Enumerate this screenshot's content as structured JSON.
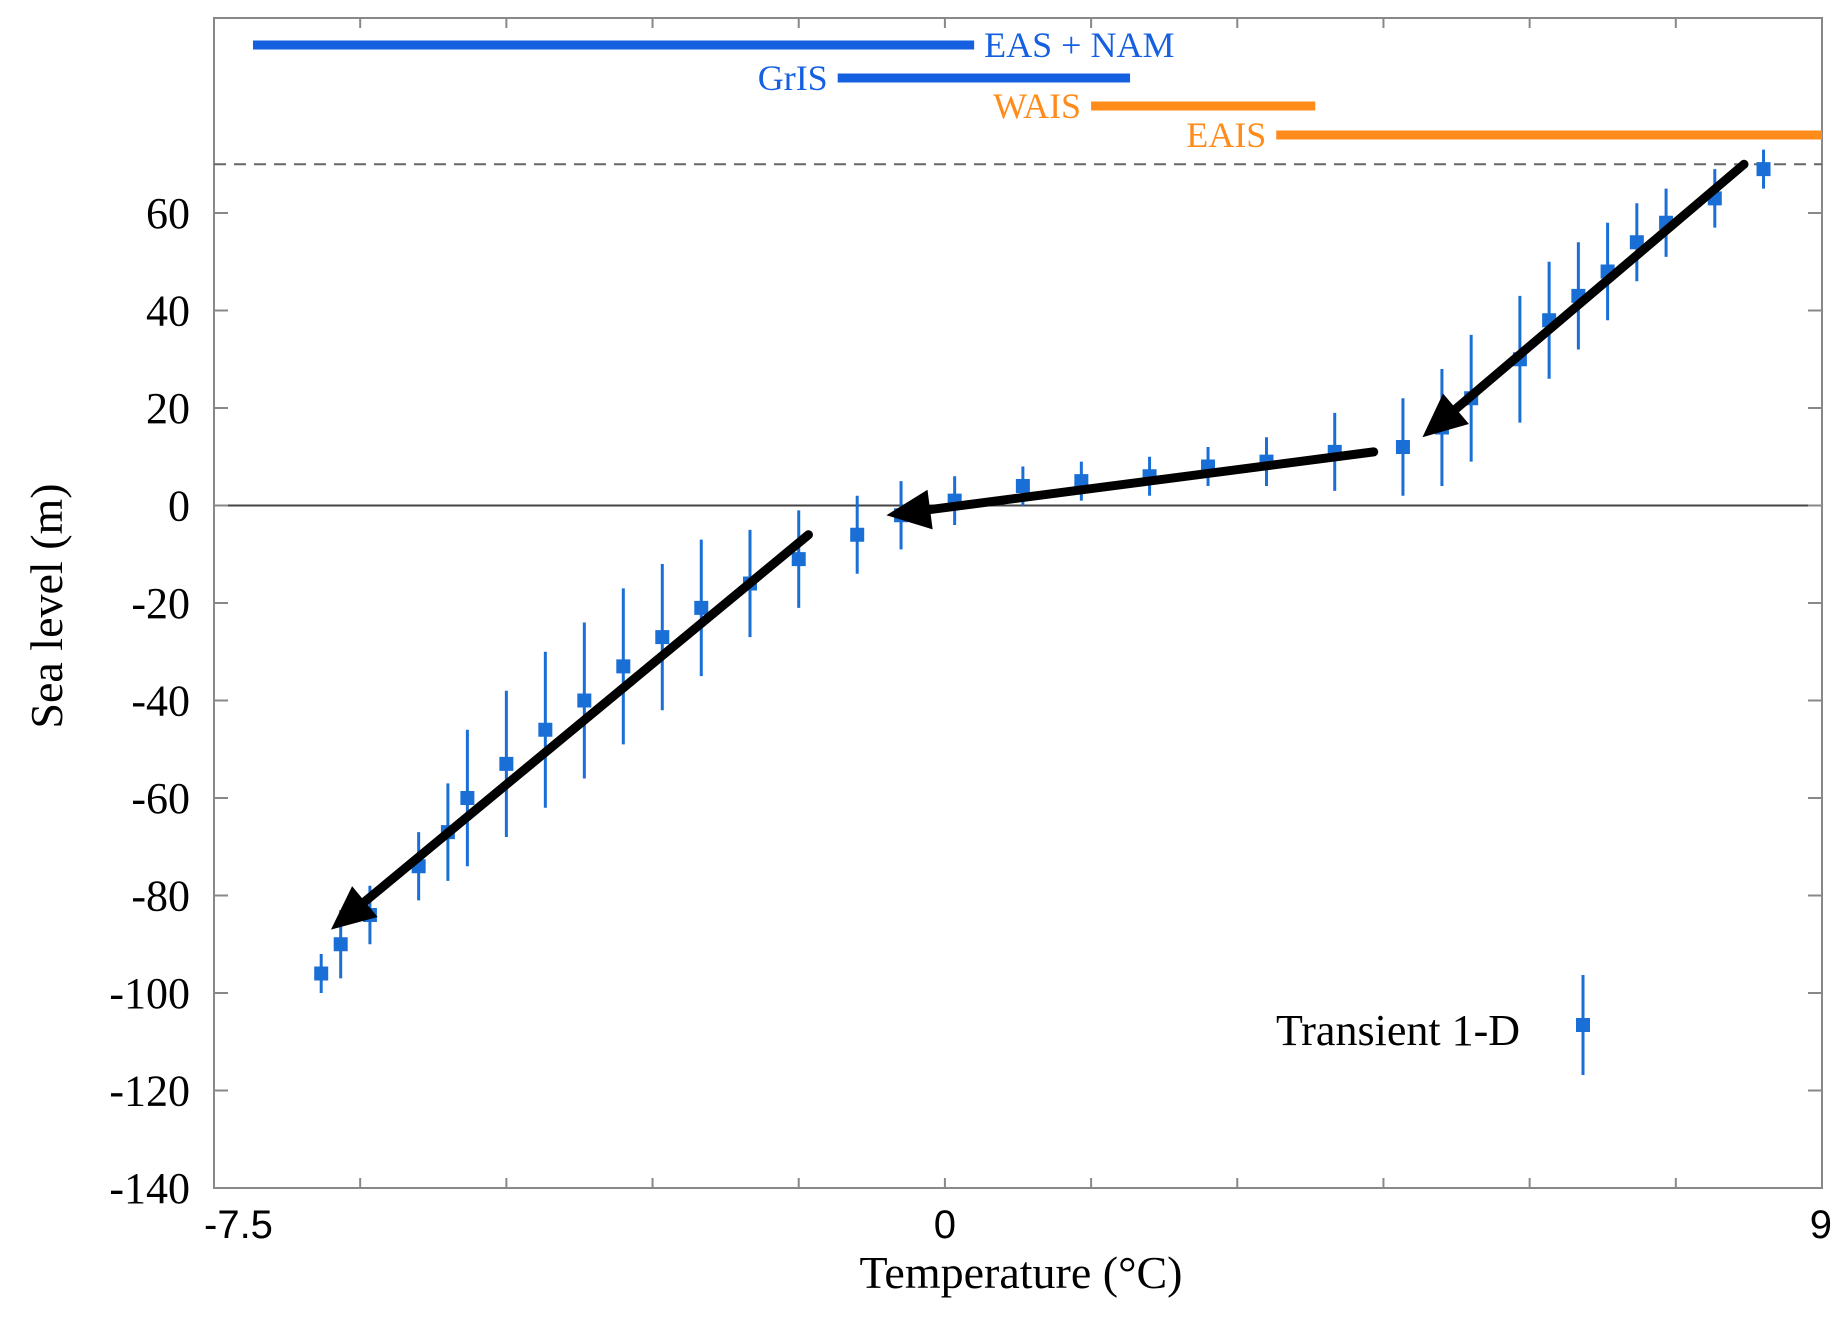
{
  "chart_data": {
    "type": "scatter",
    "xlabel": "Temperature (°C)",
    "ylabel": "Sea level (m)",
    "xlim": [
      -7.5,
      9
    ],
    "ylim": [
      -140,
      100
    ],
    "x_tick_labels": [
      {
        "value": -7.5,
        "label": "-7.5"
      },
      {
        "value": 0,
        "label": "0"
      },
      {
        "value": 9,
        "label": "9"
      }
    ],
    "y_ticks": [
      -140,
      -120,
      -100,
      -80,
      -60,
      -40,
      -20,
      0,
      20,
      40,
      60
    ],
    "reference_lines": [
      {
        "y": 0,
        "style": "solid"
      },
      {
        "y": 70,
        "style": "dashed"
      }
    ],
    "ice_sheet_ranges": [
      {
        "name": "EAS + NAM",
        "x_start": -7.1,
        "x_end": 0.3,
        "color": "#1560e0"
      },
      {
        "name": "GrIS",
        "x_start": -1.1,
        "x_end": 1.9,
        "color": "#1560e0"
      },
      {
        "name": "WAIS",
        "x_start": 1.5,
        "x_end": 3.8,
        "color": "#ff8c1a"
      },
      {
        "name": "EAIS",
        "x_start": 3.4,
        "x_end": 9.0,
        "color": "#ff8c1a"
      }
    ],
    "series": [
      {
        "name": "Transient 1-D",
        "color": "#1a6fd6",
        "points": [
          {
            "x": -6.4,
            "y": -96,
            "err": 4
          },
          {
            "x": -6.2,
            "y": -90,
            "err": 7
          },
          {
            "x": -5.9,
            "y": -84,
            "err": 6
          },
          {
            "x": -5.4,
            "y": -74,
            "err": 7
          },
          {
            "x": -5.1,
            "y": -67,
            "err": 10
          },
          {
            "x": -4.9,
            "y": -60,
            "err": 14
          },
          {
            "x": -4.5,
            "y": -53,
            "err": 15
          },
          {
            "x": -4.1,
            "y": -46,
            "err": 16
          },
          {
            "x": -3.7,
            "y": -40,
            "err": 16
          },
          {
            "x": -3.3,
            "y": -33,
            "err": 16
          },
          {
            "x": -2.9,
            "y": -27,
            "err": 15
          },
          {
            "x": -2.5,
            "y": -21,
            "err": 14
          },
          {
            "x": -2.0,
            "y": -16,
            "err": 11
          },
          {
            "x": -1.5,
            "y": -11,
            "err": 10
          },
          {
            "x": -0.9,
            "y": -6,
            "err": 8
          },
          {
            "x": -0.45,
            "y": -2,
            "err": 7
          },
          {
            "x": 0.1,
            "y": 1,
            "err": 5
          },
          {
            "x": 0.8,
            "y": 4,
            "err": 4
          },
          {
            "x": 1.4,
            "y": 5,
            "err": 4
          },
          {
            "x": 2.1,
            "y": 6,
            "err": 4
          },
          {
            "x": 2.7,
            "y": 8,
            "err": 4
          },
          {
            "x": 3.3,
            "y": 9,
            "err": 5
          },
          {
            "x": 4.0,
            "y": 11,
            "err": 8
          },
          {
            "x": 4.7,
            "y": 12,
            "err": 10
          },
          {
            "x": 5.1,
            "y": 16,
            "err": 12
          },
          {
            "x": 5.4,
            "y": 22,
            "err": 13
          },
          {
            "x": 5.9,
            "y": 30,
            "err": 13
          },
          {
            "x": 6.2,
            "y": 38,
            "err": 12
          },
          {
            "x": 6.5,
            "y": 43,
            "err": 11
          },
          {
            "x": 6.8,
            "y": 48,
            "err": 10
          },
          {
            "x": 7.1,
            "y": 54,
            "err": 8
          },
          {
            "x": 7.4,
            "y": 58,
            "err": 7
          },
          {
            "x": 7.9,
            "y": 63,
            "err": 6
          },
          {
            "x": 8.4,
            "y": 69,
            "err": 4
          }
        ]
      }
    ],
    "arrows": [
      {
        "from": [
          8.2,
          70
        ],
        "to": [
          4.9,
          14
        ]
      },
      {
        "from": [
          4.4,
          11
        ],
        "to": [
          -0.6,
          -2
        ]
      },
      {
        "from": [
          -1.4,
          -6
        ],
        "to": [
          -6.3,
          -87
        ]
      }
    ],
    "legend": {
      "position": "bottom-right",
      "label": "Transient 1-D"
    }
  }
}
